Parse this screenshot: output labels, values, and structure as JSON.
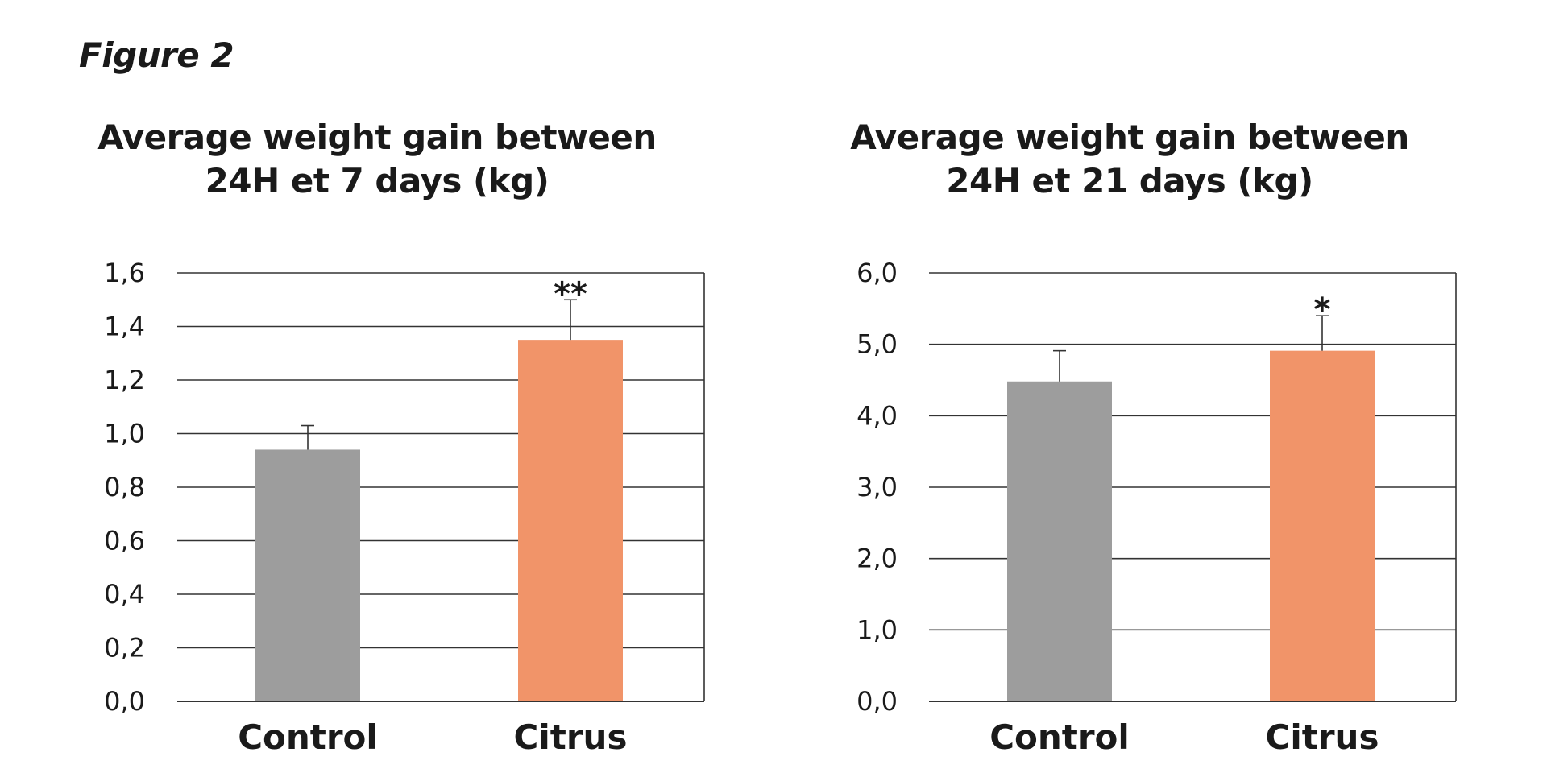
{
  "figure_label": "Figure 2",
  "colors": {
    "control": "#9d9d9d",
    "citrus": "#f19469",
    "gridline": "#333333",
    "text": "#1a1a1a"
  },
  "chart_data": [
    {
      "type": "bar",
      "title": [
        "Average weight gain between",
        "24H et 7 days (kg)"
      ],
      "categories": [
        "Control",
        "Citrus"
      ],
      "values": [
        0.94,
        1.35
      ],
      "error_upper": [
        1.03,
        1.5
      ],
      "significance": [
        "",
        "**"
      ],
      "ylim": [
        0,
        1.6
      ],
      "yticks": [
        0.0,
        0.2,
        0.4,
        0.6,
        0.8,
        1.0,
        1.2,
        1.4,
        1.6
      ],
      "ytick_labels": [
        "0,0",
        "0,2",
        "0,4",
        "0,6",
        "0,8",
        "1,0",
        "1,2",
        "1,4",
        "1,6"
      ],
      "grid": true,
      "xlabel": "",
      "ylabel": ""
    },
    {
      "type": "bar",
      "title": [
        "Average weight gain between",
        "24H et 21 days (kg)"
      ],
      "categories": [
        "Control",
        "Citrus"
      ],
      "values": [
        4.48,
        4.91
      ],
      "error_upper": [
        4.91,
        5.4
      ],
      "significance": [
        "",
        "*"
      ],
      "ylim": [
        0,
        6.0
      ],
      "yticks": [
        0.0,
        1.0,
        2.0,
        3.0,
        4.0,
        5.0,
        6.0
      ],
      "ytick_labels": [
        "0,0",
        "1,0",
        "2,0",
        "3,0",
        "4,0",
        "5,0",
        "6,0"
      ],
      "grid": true,
      "xlabel": "",
      "ylabel": ""
    }
  ]
}
